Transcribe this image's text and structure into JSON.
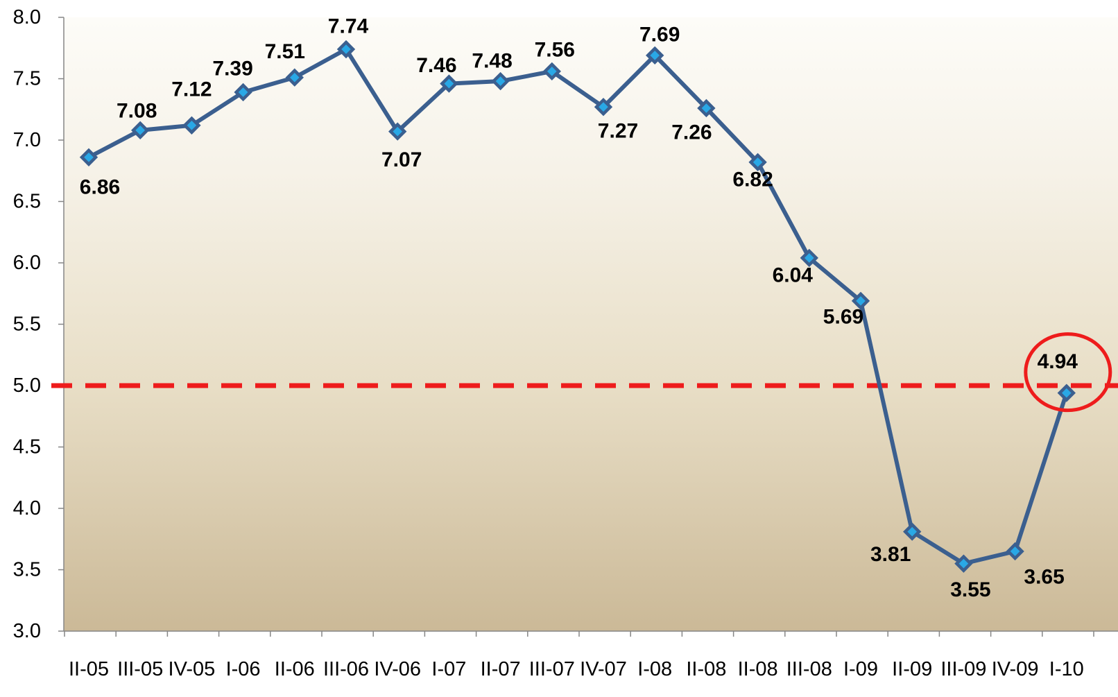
{
  "chart_data": {
    "type": "line",
    "title": "",
    "xlabel": "",
    "ylabel": "",
    "categories": [
      "II-05",
      "III-05",
      "IV-05",
      "I-06",
      "II-06",
      "III-06",
      "IV-06",
      "I-07",
      "II-07",
      "III-07",
      "IV-07",
      "I-08",
      "II-08",
      "II-08",
      "III-08",
      "I-09",
      "II-09",
      "III-09",
      "IV-09",
      "I-10"
    ],
    "values": [
      6.86,
      7.08,
      7.12,
      7.39,
      7.51,
      7.74,
      7.07,
      7.46,
      7.48,
      7.56,
      7.27,
      7.69,
      7.26,
      6.82,
      6.04,
      5.69,
      3.81,
      3.55,
      3.65,
      4.94
    ],
    "data_labels": [
      "6.86",
      "7.08",
      "7.12",
      "7.39",
      "7.51",
      "7.74",
      "7.07",
      "7.46",
      "7.48",
      "7.56",
      "7.27",
      "7.69",
      "7.26",
      "6.82",
      "6.04",
      "5.69",
      "3.81",
      "3.55",
      "3.65",
      "4.94"
    ],
    "ylim": [
      3.0,
      8.0
    ],
    "yticks": [
      "3.0",
      "3.5",
      "4.0",
      "4.5",
      "5.0",
      "5.5",
      "6.0",
      "6.5",
      "7.0",
      "7.5",
      "8.0"
    ],
    "reference_line": {
      "value": 5.0,
      "style": "dashed",
      "color": "#ee1c1c"
    },
    "highlight": {
      "index": 19,
      "shape": "circle",
      "color": "#ee1c1c"
    },
    "grid": false,
    "legend": "none",
    "colors": {
      "line": "#3b5f8f",
      "marker_fill": "#29a8e6",
      "background_top": "#fdfcf8",
      "background_bottom": "#cbb997"
    }
  }
}
